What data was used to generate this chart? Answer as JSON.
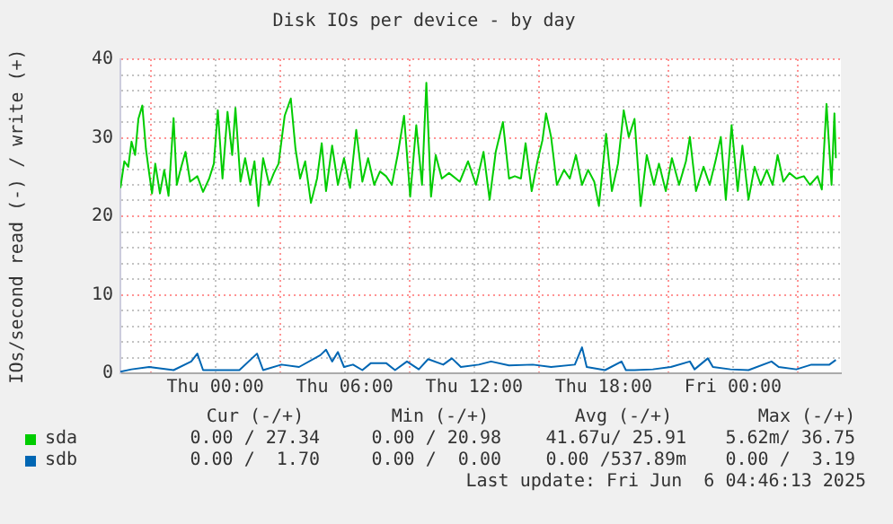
{
  "chart_data": {
    "type": "line",
    "title": "Disk IOs per device - by day",
    "ylabel": "IOs/second read (-) / write (+)",
    "xlim": [
      "2025-06-04T19:36",
      "2025-06-06T05:00"
    ],
    "xticks": [
      {
        "value": "2025-06-04T21:00",
        "label": null
      },
      {
        "value": "2025-06-05T00:00",
        "label": "Thu 00:00"
      },
      {
        "value": "2025-06-05T03:00",
        "label": null
      },
      {
        "value": "2025-06-05T06:00",
        "label": "Thu 06:00"
      },
      {
        "value": "2025-06-05T09:00",
        "label": null
      },
      {
        "value": "2025-06-05T12:00",
        "label": "Thu 12:00"
      },
      {
        "value": "2025-06-05T15:00",
        "label": null
      },
      {
        "value": "2025-06-05T18:00",
        "label": "Thu 18:00"
      },
      {
        "value": "2025-06-05T21:00",
        "label": null
      },
      {
        "value": "2025-06-06T00:00",
        "label": "Fri 00:00"
      },
      {
        "value": "2025-06-06T03:00",
        "label": null
      }
    ],
    "ylim": [
      0,
      40
    ],
    "yticks": [
      0,
      {
        "value": 2,
        "label": null
      },
      {
        "value": 4,
        "label": null
      },
      {
        "value": 6,
        "label": null
      },
      {
        "value": 8,
        "label": null
      },
      10,
      {
        "value": 12,
        "label": null
      },
      {
        "value": 14,
        "label": null
      },
      {
        "value": 16,
        "label": null
      },
      {
        "value": 18,
        "label": null
      },
      20,
      {
        "value": 22,
        "label": null
      },
      {
        "value": 24,
        "label": null
      },
      {
        "value": 26,
        "label": null
      },
      {
        "value": 28,
        "label": null
      },
      30,
      {
        "value": 32,
        "label": null
      },
      {
        "value": 34,
        "label": null
      },
      {
        "value": 36,
        "label": null
      },
      {
        "value": 38,
        "label": null
      },
      40
    ],
    "grid": true,
    "legend": "bottom",
    "marker": "none",
    "line_style": "solid",
    "series": [
      {
        "name": "sda",
        "color": "#00cc00",
        "x": [
          "2025-06-04T19:36",
          "2025-06-04T19:47",
          "2025-06-04T19:58",
          "2025-06-04T20:07",
          "2025-06-04T20:17",
          "2025-06-04T20:26",
          "2025-06-04T20:37",
          "2025-06-04T20:47",
          "2025-06-04T20:56",
          "2025-06-04T21:04",
          "2025-06-04T21:13",
          "2025-06-04T21:26",
          "2025-06-04T21:38",
          "2025-06-04T21:50",
          "2025-06-04T22:04",
          "2025-06-04T22:13",
          "2025-06-04T22:23",
          "2025-06-04T22:37",
          "2025-06-04T22:50",
          "2025-06-04T23:10",
          "2025-06-04T23:26",
          "2025-06-04T23:43",
          "2025-06-04T23:56",
          "2025-06-05T00:07",
          "2025-06-05T00:20",
          "2025-06-05T00:34",
          "2025-06-05T00:47",
          "2025-06-05T00:56",
          "2025-06-05T01:10",
          "2025-06-05T01:23",
          "2025-06-05T01:37",
          "2025-06-05T01:49",
          "2025-06-05T02:00",
          "2025-06-05T02:13",
          "2025-06-05T02:30",
          "2025-06-05T02:43",
          "2025-06-05T02:56",
          "2025-06-05T03:13",
          "2025-06-05T03:30",
          "2025-06-05T03:43",
          "2025-06-05T03:56",
          "2025-06-05T04:10",
          "2025-06-05T04:26",
          "2025-06-05T04:43",
          "2025-06-05T04:56",
          "2025-06-05T05:08",
          "2025-06-05T05:25",
          "2025-06-05T05:41",
          "2025-06-05T05:58",
          "2025-06-05T06:15",
          "2025-06-05T06:32",
          "2025-06-05T06:49",
          "2025-06-05T07:05",
          "2025-06-05T07:22",
          "2025-06-05T07:38",
          "2025-06-05T07:55",
          "2025-06-05T08:11",
          "2025-06-05T08:28",
          "2025-06-05T08:45",
          "2025-06-05T09:02",
          "2025-06-05T09:19",
          "2025-06-05T09:35",
          "2025-06-05T09:47",
          "2025-06-05T10:00",
          "2025-06-05T10:13",
          "2025-06-05T10:30",
          "2025-06-05T10:50",
          "2025-06-05T11:20",
          "2025-06-05T11:43",
          "2025-06-05T12:05",
          "2025-06-05T12:26",
          "2025-06-05T12:43",
          "2025-06-05T13:00",
          "2025-06-05T13:20",
          "2025-06-05T13:37",
          "2025-06-05T13:53",
          "2025-06-05T14:10",
          "2025-06-05T14:23",
          "2025-06-05T14:40",
          "2025-06-05T14:56",
          "2025-06-05T15:10",
          "2025-06-05T15:20",
          "2025-06-05T15:34",
          "2025-06-05T15:50",
          "2025-06-05T16:10",
          "2025-06-05T16:26",
          "2025-06-05T16:43",
          "2025-06-05T17:00",
          "2025-06-05T17:17",
          "2025-06-05T17:34",
          "2025-06-05T17:47",
          "2025-06-05T18:07",
          "2025-06-05T18:23",
          "2025-06-05T18:40",
          "2025-06-05T18:56",
          "2025-06-05T19:10",
          "2025-06-05T19:26",
          "2025-06-05T19:43",
          "2025-06-05T20:00",
          "2025-06-05T20:20",
          "2025-06-05T20:34",
          "2025-06-05T20:53",
          "2025-06-05T21:10",
          "2025-06-05T21:30",
          "2025-06-05T21:49",
          "2025-06-05T22:00",
          "2025-06-05T22:17",
          "2025-06-05T22:38",
          "2025-06-05T22:55",
          "2025-06-05T23:11",
          "2025-06-05T23:26",
          "2025-06-05T23:40",
          "2025-06-05T23:56",
          "2025-06-06T00:13",
          "2025-06-06T00:26",
          "2025-06-06T00:43",
          "2025-06-06T01:00",
          "2025-06-06T01:17",
          "2025-06-06T01:34",
          "2025-06-06T01:50",
          "2025-06-06T02:04",
          "2025-06-06T02:20",
          "2025-06-06T02:37",
          "2025-06-06T02:56",
          "2025-06-06T03:17",
          "2025-06-06T03:34",
          "2025-06-06T03:55",
          "2025-06-06T04:07",
          "2025-06-06T04:20",
          "2025-06-06T04:34",
          "2025-06-06T04:42",
          "2025-06-06T04:46"
        ],
        "values": [
          23.6,
          27.0,
          26.3,
          29.5,
          27.8,
          32.4,
          34.1,
          28.6,
          25.5,
          22.9,
          26.7,
          22.9,
          25.9,
          22.6,
          32.5,
          24.0,
          25.9,
          28.2,
          24.4,
          25.1,
          23.1,
          24.8,
          26.7,
          33.5,
          24.8,
          33.3,
          27.8,
          33.8,
          24.4,
          27.4,
          24.0,
          27.0,
          21.3,
          27.4,
          24.0,
          25.5,
          26.7,
          32.8,
          35.0,
          28.6,
          24.8,
          27.0,
          21.7,
          24.8,
          29.3,
          23.2,
          29.0,
          24.0,
          27.4,
          23.6,
          31.0,
          24.4,
          27.4,
          24.0,
          25.7,
          25.1,
          24.0,
          28.0,
          32.8,
          22.5,
          31.6,
          24.0,
          37.0,
          22.5,
          27.8,
          24.8,
          25.5,
          24.4,
          27.0,
          24.0,
          28.2,
          22.1,
          28.2,
          32.0,
          24.8,
          25.1,
          24.8,
          29.3,
          23.2,
          27.0,
          29.7,
          33.1,
          30.1,
          24.0,
          25.9,
          24.8,
          27.8,
          24.0,
          25.9,
          24.4,
          21.3,
          30.5,
          23.2,
          26.7,
          33.5,
          30.1,
          32.4,
          21.3,
          27.8,
          24.0,
          26.7,
          23.2,
          27.4,
          24.0,
          27.0,
          30.1,
          23.2,
          26.3,
          24.0,
          27.0,
          30.1,
          22.1,
          31.6,
          23.2,
          29.0,
          22.1,
          26.3,
          24.0,
          25.9,
          24.0,
          27.8,
          24.4,
          25.5,
          24.8,
          25.1,
          24.0,
          25.1,
          23.4,
          34.3,
          24.0,
          33.1,
          27.4
        ]
      },
      {
        "name": "sdb",
        "color": "#0066b3",
        "x": [
          "2025-06-04T19:36",
          "2025-06-04T20:07",
          "2025-06-04T20:56",
          "2025-06-04T22:04",
          "2025-06-04T22:53",
          "2025-06-04T23:10",
          "2025-06-04T23:26",
          "2025-06-05T01:07",
          "2025-06-05T01:56",
          "2025-06-05T02:13",
          "2025-06-05T03:04",
          "2025-06-05T03:53",
          "2025-06-05T04:52",
          "2025-06-05T05:08",
          "2025-06-05T05:25",
          "2025-06-05T05:41",
          "2025-06-05T05:58",
          "2025-06-05T06:23",
          "2025-06-05T06:49",
          "2025-06-05T07:13",
          "2025-06-05T07:55",
          "2025-06-05T08:20",
          "2025-06-05T08:53",
          "2025-06-05T09:26",
          "2025-06-05T09:52",
          "2025-06-05T10:34",
          "2025-06-05T10:58",
          "2025-06-05T11:23",
          "2025-06-05T12:13",
          "2025-06-05T12:47",
          "2025-06-05T13:37",
          "2025-06-05T14:43",
          "2025-06-05T15:34",
          "2025-06-05T16:40",
          "2025-06-05T17:00",
          "2025-06-05T17:13",
          "2025-06-05T18:04",
          "2025-06-05T18:50",
          "2025-06-05T19:02",
          "2025-06-05T19:26",
          "2025-06-05T20:17",
          "2025-06-05T21:07",
          "2025-06-05T22:00",
          "2025-06-05T22:13",
          "2025-06-05T22:50",
          "2025-06-05T23:04",
          "2025-06-05T23:53",
          "2025-06-06T00:43",
          "2025-06-06T01:47",
          "2025-06-06T02:07",
          "2025-06-06T02:56",
          "2025-06-06T03:38",
          "2025-06-06T04:28",
          "2025-06-06T04:46"
        ],
        "values": [
          0.2,
          0.5,
          0.8,
          0.4,
          1.5,
          2.5,
          0.4,
          0.4,
          2.5,
          0.4,
          1.1,
          0.8,
          2.3,
          3.0,
          1.5,
          2.7,
          0.8,
          1.1,
          0.4,
          1.3,
          1.3,
          0.4,
          1.5,
          0.5,
          1.8,
          1.1,
          1.9,
          0.8,
          1.1,
          1.5,
          1.0,
          1.1,
          0.8,
          1.1,
          3.3,
          0.8,
          0.4,
          1.5,
          0.4,
          0.4,
          0.5,
          0.8,
          1.5,
          0.5,
          1.9,
          0.8,
          0.5,
          0.4,
          1.5,
          0.8,
          0.5,
          1.1,
          1.1,
          1.7
        ]
      }
    ],
    "annotations": [
      "Cur (-/+)",
      "Min (-/+)",
      "Avg (-/+)",
      "Max (-/+)",
      "0.00 / 27.34",
      "0.00 / 20.98",
      "41.67u/ 25.91",
      "5.62m/ 36.75",
      "0.00 /  1.70",
      "0.00 /  0.00",
      "0.00 /537.89m",
      "0.00 /  3.19",
      "Last update: Fri Jun  6 04:46:13 2025"
    ]
  }
}
